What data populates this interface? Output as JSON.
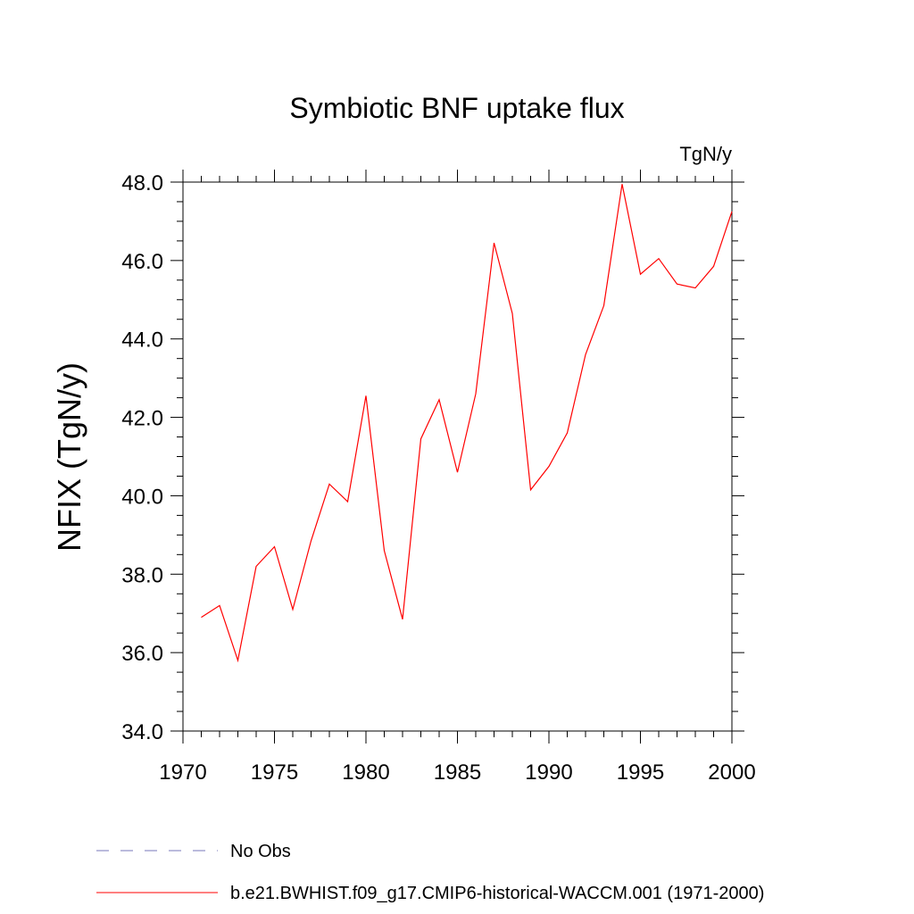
{
  "chart_data": {
    "type": "line",
    "title": "Symbiotic BNF uptake flux",
    "units": "TgN/y",
    "ylabel": "NFIX  (TgN/y)",
    "xlabel": "",
    "xlim": [
      1970,
      2000
    ],
    "ylim": [
      34.0,
      48.0
    ],
    "xticks": [
      1970,
      1975,
      1980,
      1985,
      1990,
      1995,
      2000
    ],
    "xtick_labels": [
      "1970",
      "1975",
      "1980",
      "1985",
      "1990",
      "1995",
      "2000"
    ],
    "yticks": [
      34.0,
      36.0,
      38.0,
      40.0,
      42.0,
      44.0,
      46.0,
      48.0
    ],
    "ytick_labels": [
      "34.0",
      "36.0",
      "38.0",
      "40.0",
      "42.0",
      "44.0",
      "46.0",
      "48.0"
    ],
    "grid": false,
    "legend_position": "bottom",
    "series": [
      {
        "name": "b.e21.BWHIST.f09_g17.CMIP6-historical-WACCM.001 (1971-2000)",
        "color": "#ff0000",
        "x": [
          1971,
          1972,
          1973,
          1974,
          1975,
          1976,
          1977,
          1978,
          1979,
          1980,
          1981,
          1982,
          1983,
          1984,
          1985,
          1986,
          1987,
          1988,
          1989,
          1990,
          1991,
          1992,
          1993,
          1994,
          1995,
          1996,
          1997,
          1998,
          1999,
          2000
        ],
        "y": [
          36.9,
          37.2,
          35.8,
          38.2,
          38.7,
          37.1,
          38.85,
          40.3,
          39.85,
          42.55,
          38.6,
          36.85,
          41.45,
          42.45,
          40.6,
          42.6,
          46.45,
          44.65,
          40.15,
          40.75,
          41.6,
          43.6,
          44.85,
          47.95,
          45.65,
          46.05,
          45.4,
          45.3,
          45.85,
          47.25
        ]
      }
    ],
    "legend": [
      {
        "label": "No Obs",
        "style": "dashed",
        "color": "#7777bb"
      },
      {
        "label": "b.e21.BWHIST.f09_g17.CMIP6-historical-WACCM.001 (1971-2000)",
        "style": "solid",
        "color": "#ff0000"
      }
    ]
  }
}
